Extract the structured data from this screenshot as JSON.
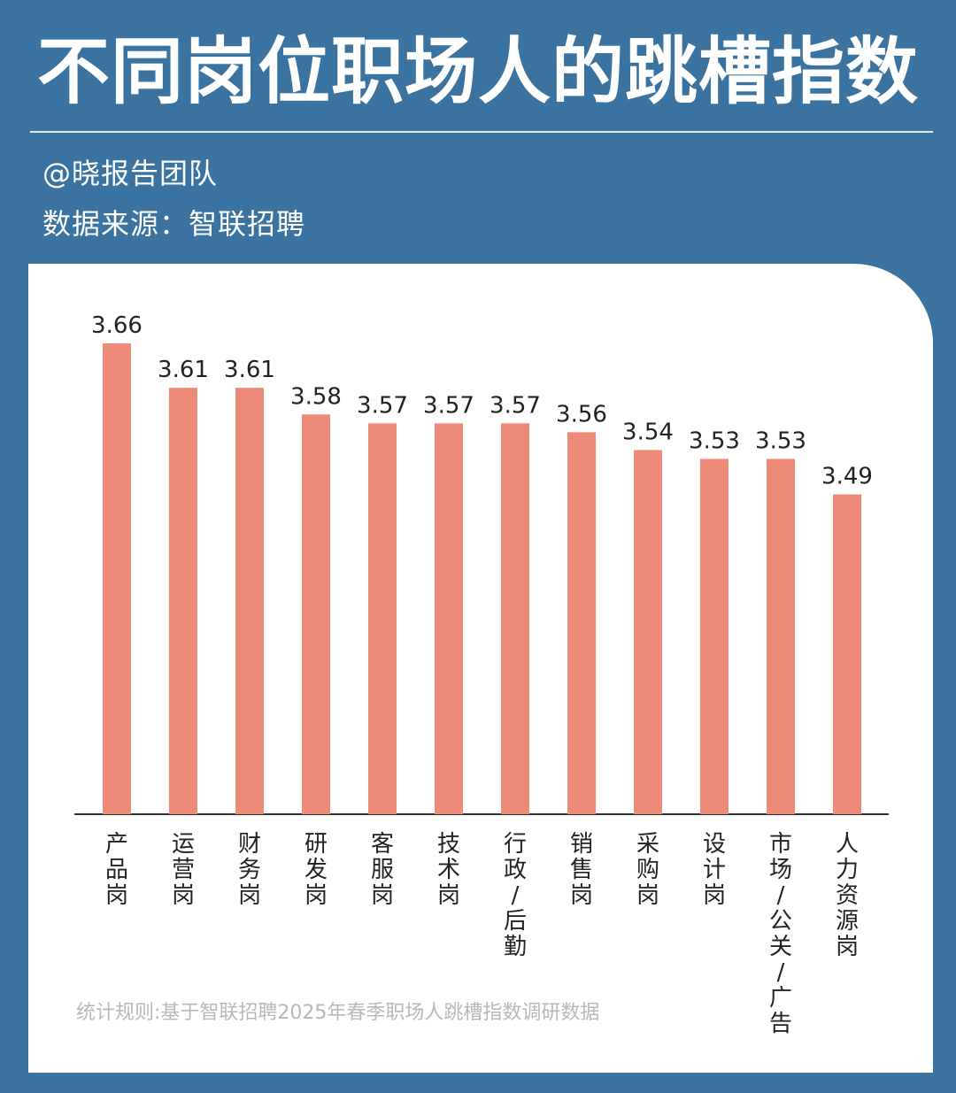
{
  "header": {
    "title": "不同岗位职场人的跳槽指数",
    "author": "@晓报告团队",
    "source": "数据来源：智联招聘"
  },
  "footnote": "统计规则:基于智联招聘2025年春季职场人跳槽指数调研数据",
  "colors": {
    "background": "#3a73a0",
    "bar": "#ee8b78",
    "card": "#ffffff"
  },
  "chart_data": {
    "type": "bar",
    "categories": [
      "产品岗",
      "运营岗",
      "财务岗",
      "研发岗",
      "客服岗",
      "技术岗",
      "行政/后勤",
      "销售岗",
      "采购岗",
      "设计岗",
      "市场/公关/广告",
      "人力资源岗"
    ],
    "values": [
      3.66,
      3.61,
      3.61,
      3.58,
      3.57,
      3.57,
      3.57,
      3.56,
      3.54,
      3.53,
      3.53,
      3.49
    ],
    "labels": [
      "3.66",
      "3.61",
      "3.61",
      "3.58",
      "3.57",
      "3.57",
      "3.57",
      "3.56",
      "3.54",
      "3.53",
      "3.53",
      "3.49"
    ],
    "ylim": [
      3.13,
      3.66
    ],
    "grid": false,
    "legend": "none"
  }
}
